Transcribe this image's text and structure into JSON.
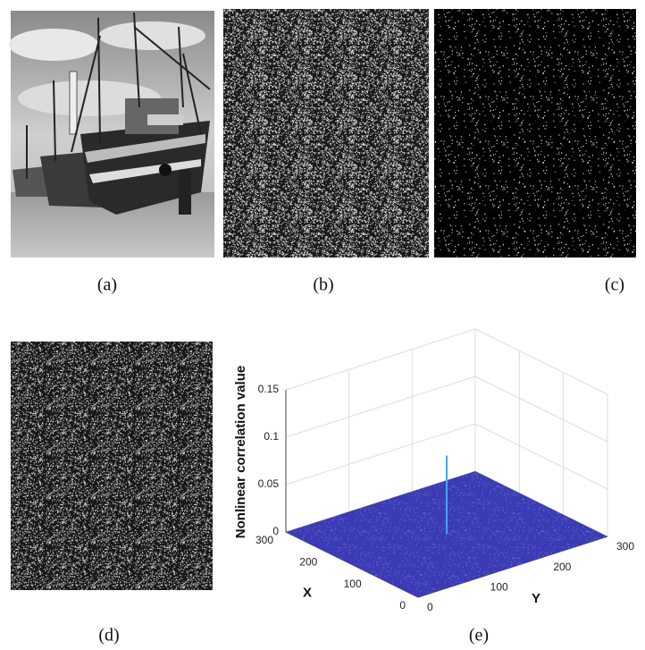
{
  "panels": [
    {
      "label": "(a)"
    },
    {
      "label": "(b)"
    },
    {
      "label": "(c)"
    },
    {
      "label": "(d)"
    },
    {
      "label": "(e)"
    }
  ],
  "chart_data": {
    "type": "surface3d",
    "zlabel": "Nonlinear correlation value",
    "xlabel": "X",
    "ylabel": "Y",
    "xlim": [
      0,
      300
    ],
    "ylim": [
      0,
      300
    ],
    "zlim": [
      0,
      0.15
    ],
    "xticks": [
      0,
      100,
      200,
      300
    ],
    "yticks": [
      0,
      100,
      200,
      300
    ],
    "zticks": [
      0,
      0.05,
      0.1,
      0.15
    ],
    "peak": 0.083,
    "color": "#3b3bb3",
    "peak_color": "#3fa9f5",
    "grid": true
  }
}
